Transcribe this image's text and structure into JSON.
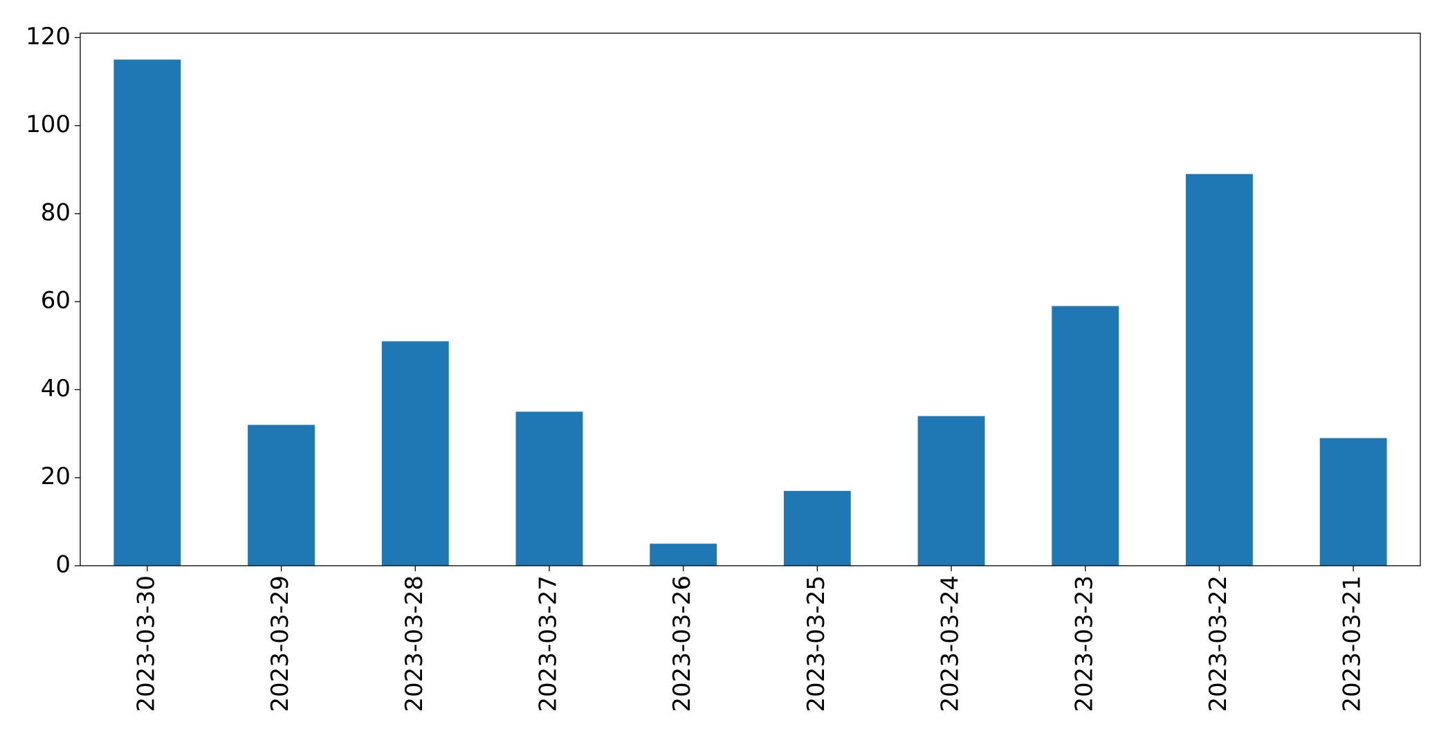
{
  "chart_data": {
    "type": "bar",
    "categories": [
      "2023-03-30",
      "2023-03-29",
      "2023-03-28",
      "2023-03-27",
      "2023-03-26",
      "2023-03-25",
      "2023-03-24",
      "2023-03-23",
      "2023-03-22",
      "2023-03-21"
    ],
    "values": [
      115,
      32,
      51,
      35,
      5,
      17,
      34,
      59,
      89,
      29
    ],
    "color": "#1f77b4",
    "ylim": [
      0,
      121
    ],
    "yticks": [
      0,
      20,
      40,
      60,
      80,
      100,
      120
    ],
    "grid": false
  }
}
